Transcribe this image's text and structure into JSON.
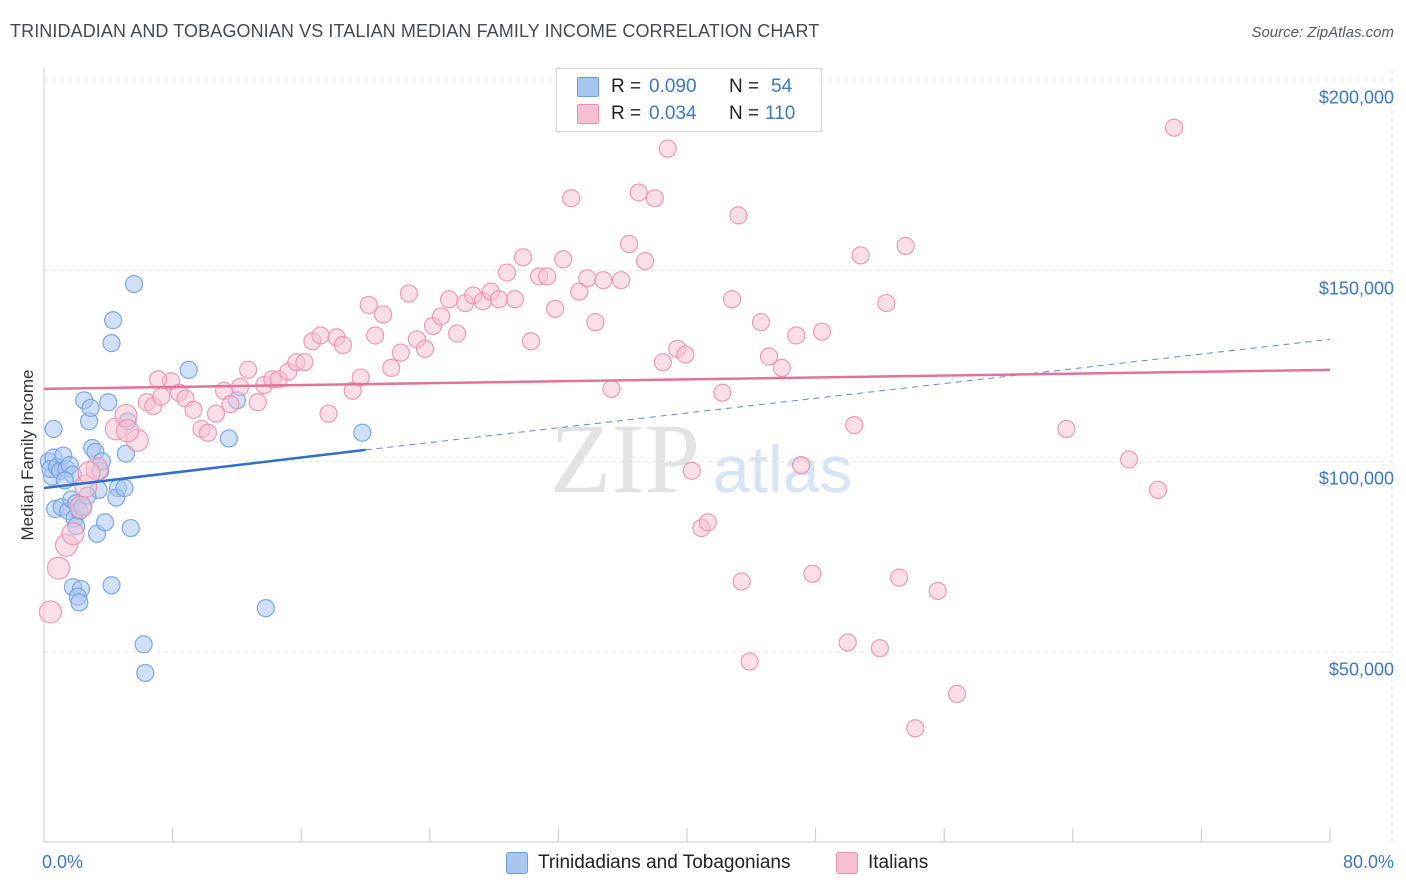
{
  "title": "TRINIDADIAN AND TOBAGONIAN VS ITALIAN MEDIAN FAMILY INCOME CORRELATION CHART",
  "source": "Source: ZipAtlas.com",
  "watermark": {
    "zip": "ZIP",
    "atlas": "atlas"
  },
  "stats": [
    {
      "r_label": "R =",
      "r_value": "0.090",
      "n_label": "N =",
      "n_value": "54",
      "color": "#a9c7ee",
      "stroke": "#6a9ee0"
    },
    {
      "r_label": "R =",
      "r_value": "0.034",
      "n_label": "N =",
      "n_value": "110",
      "color": "#f7bfd2",
      "stroke": "#ea8fb0"
    }
  ],
  "legend": [
    {
      "label": "Trinidadians and Tobagonians",
      "color": "#a9c7ee",
      "stroke": "#6a9ee0"
    },
    {
      "label": "Italians",
      "color": "#f7bfd2",
      "stroke": "#ea8fb0"
    }
  ],
  "chart_data": {
    "type": "scatter",
    "title": "TRINIDADIAN AND TOBAGONIAN VS ITALIAN MEDIAN FAMILY INCOME CORRELATION CHART",
    "xlabel": "",
    "ylabel": "Median Family Income",
    "xlim": [
      0,
      80
    ],
    "ylim": [
      0,
      210000
    ],
    "x_tick_labels": [
      "0.0%",
      "80.0%"
    ],
    "y_ticks": [
      50000,
      100000,
      150000,
      200000
    ],
    "y_tick_labels": [
      "$50,000",
      "$100,000",
      "$150,000",
      "$200,000"
    ],
    "grid": true,
    "series": [
      {
        "name": "Trinidadians and Tobagonians",
        "color": "#6fa0e2",
        "fill": "#a9c7ee",
        "trend": {
          "x": [
            0,
            20
          ],
          "y": [
            93000,
            103000
          ],
          "dashed_to_x": 80,
          "dashed_to_y": 132000,
          "color": "#2f6fca"
        },
        "points": [
          [
            0.3,
            100000
          ],
          [
            0.5,
            96000
          ],
          [
            0.6,
            101000
          ],
          [
            0.4,
            98000
          ],
          [
            0.8,
            98500
          ],
          [
            1.0,
            97500
          ],
          [
            1.2,
            101500
          ],
          [
            1.4,
            98000
          ],
          [
            1.6,
            99000
          ],
          [
            1.8,
            96500
          ],
          [
            0.6,
            108500
          ],
          [
            0.7,
            87500
          ],
          [
            1.1,
            88000
          ],
          [
            1.5,
            87000
          ],
          [
            1.7,
            90000
          ],
          [
            1.9,
            85000
          ],
          [
            2.0,
            89000
          ],
          [
            1.3,
            95000
          ],
          [
            2.2,
            87000
          ],
          [
            2.4,
            88000
          ],
          [
            2.5,
            116000
          ],
          [
            2.8,
            110500
          ],
          [
            2.9,
            114000
          ],
          [
            3.0,
            103500
          ],
          [
            3.2,
            102500
          ],
          [
            3.5,
            97500
          ],
          [
            3.6,
            100000
          ],
          [
            3.4,
            92500
          ],
          [
            3.3,
            81000
          ],
          [
            2.7,
            91000
          ],
          [
            3.8,
            84000
          ],
          [
            4.0,
            115500
          ],
          [
            4.3,
            137000
          ],
          [
            4.2,
            131000
          ],
          [
            4.6,
            93000
          ],
          [
            4.5,
            90500
          ],
          [
            5.0,
            93000
          ],
          [
            5.1,
            102000
          ],
          [
            5.2,
            110500
          ],
          [
            5.4,
            82500
          ],
          [
            5.6,
            146500
          ],
          [
            2.0,
            83000
          ],
          [
            1.8,
            67000
          ],
          [
            2.3,
            66500
          ],
          [
            2.1,
            64500
          ],
          [
            2.2,
            63000
          ],
          [
            4.2,
            67500
          ],
          [
            6.2,
            52000
          ],
          [
            6.3,
            44500
          ],
          [
            9.0,
            124000
          ],
          [
            11.5,
            106000
          ],
          [
            12.0,
            116000
          ],
          [
            13.8,
            61500
          ],
          [
            19.8,
            107500
          ]
        ]
      },
      {
        "name": "Italians",
        "color": "#ea8fb0",
        "fill": "#f7bfd2",
        "trend": {
          "x": [
            0,
            80
          ],
          "y": [
            119000,
            124000
          ],
          "color": "#e0739a"
        },
        "points": [
          [
            0.4,
            60500
          ],
          [
            0.9,
            72000
          ],
          [
            1.4,
            78000
          ],
          [
            1.8,
            81000
          ],
          [
            2.3,
            88000
          ],
          [
            2.6,
            93500
          ],
          [
            3.3,
            98000
          ],
          [
            4.5,
            108500
          ],
          [
            5.1,
            112000
          ],
          [
            5.8,
            105500
          ],
          [
            6.4,
            115500
          ],
          [
            6.8,
            114500
          ],
          [
            7.3,
            117000
          ],
          [
            7.9,
            121000
          ],
          [
            8.4,
            118000
          ],
          [
            8.8,
            116500
          ],
          [
            9.3,
            113500
          ],
          [
            9.8,
            108500
          ],
          [
            10.2,
            107500
          ],
          [
            10.7,
            112500
          ],
          [
            11.2,
            118500
          ],
          [
            11.6,
            115000
          ],
          [
            12.2,
            119500
          ],
          [
            12.7,
            124000
          ],
          [
            13.3,
            115500
          ],
          [
            13.7,
            120000
          ],
          [
            14.2,
            121500
          ],
          [
            14.6,
            121500
          ],
          [
            15.2,
            123500
          ],
          [
            15.7,
            126000
          ],
          [
            16.2,
            126000
          ],
          [
            16.7,
            131500
          ],
          [
            17.2,
            133000
          ],
          [
            17.7,
            112500
          ],
          [
            18.2,
            132500
          ],
          [
            18.6,
            130500
          ],
          [
            19.2,
            118500
          ],
          [
            19.7,
            122000
          ],
          [
            20.2,
            141000
          ],
          [
            20.6,
            133000
          ],
          [
            21.1,
            138500
          ],
          [
            21.6,
            124500
          ],
          [
            22.2,
            128500
          ],
          [
            22.7,
            144000
          ],
          [
            23.2,
            132000
          ],
          [
            23.7,
            129500
          ],
          [
            24.2,
            135500
          ],
          [
            24.7,
            138000
          ],
          [
            25.2,
            142500
          ],
          [
            25.7,
            133500
          ],
          [
            26.2,
            141500
          ],
          [
            26.7,
            143500
          ],
          [
            27.3,
            142000
          ],
          [
            27.8,
            144500
          ],
          [
            28.3,
            142500
          ],
          [
            28.8,
            149500
          ],
          [
            29.3,
            142500
          ],
          [
            29.8,
            153500
          ],
          [
            30.3,
            131500
          ],
          [
            30.8,
            148500
          ],
          [
            31.3,
            148500
          ],
          [
            31.8,
            140000
          ],
          [
            32.3,
            153000
          ],
          [
            32.8,
            169000
          ],
          [
            33.3,
            144500
          ],
          [
            33.8,
            148000
          ],
          [
            34.3,
            136500
          ],
          [
            34.8,
            147500
          ],
          [
            35.3,
            119000
          ],
          [
            35.9,
            147500
          ],
          [
            36.4,
            157000
          ],
          [
            37.0,
            170500
          ],
          [
            37.4,
            152500
          ],
          [
            38.0,
            169000
          ],
          [
            38.5,
            126000
          ],
          [
            38.8,
            182000
          ],
          [
            39.4,
            129500
          ],
          [
            39.9,
            128000
          ],
          [
            40.3,
            97500
          ],
          [
            40.9,
            82500
          ],
          [
            41.3,
            84000
          ],
          [
            42.2,
            118000
          ],
          [
            42.8,
            142500
          ],
          [
            43.2,
            164500
          ],
          [
            43.4,
            68500
          ],
          [
            43.9,
            47500
          ],
          [
            44.6,
            136500
          ],
          [
            45.1,
            127500
          ],
          [
            45.9,
            124500
          ],
          [
            46.8,
            133000
          ],
          [
            47.1,
            99000
          ],
          [
            47.8,
            70500
          ],
          [
            48.4,
            134000
          ],
          [
            50.0,
            52500
          ],
          [
            50.4,
            109500
          ],
          [
            50.8,
            154000
          ],
          [
            52.0,
            51000
          ],
          [
            52.4,
            141500
          ],
          [
            53.2,
            69500
          ],
          [
            53.6,
            156500
          ],
          [
            54.2,
            30000
          ],
          [
            55.6,
            66000
          ],
          [
            56.8,
            39000
          ],
          [
            63.6,
            108500
          ],
          [
            67.5,
            100500
          ],
          [
            69.3,
            92500
          ],
          [
            70.3,
            187500
          ],
          [
            2.8,
            97000
          ],
          [
            5.2,
            108000
          ],
          [
            7.1,
            121500
          ]
        ]
      }
    ]
  }
}
